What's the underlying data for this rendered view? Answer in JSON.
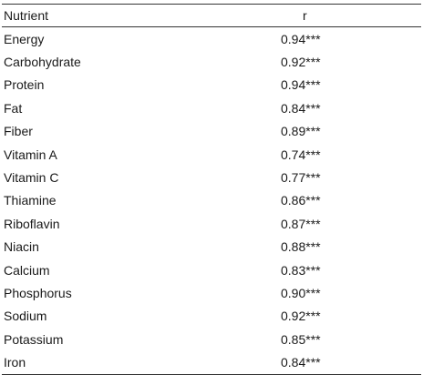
{
  "table": {
    "headers": {
      "nutrient": "Nutrient",
      "r": "r"
    },
    "rows": [
      {
        "nutrient": "Energy",
        "r": "0.94***"
      },
      {
        "nutrient": "Carbohydrate",
        "r": "0.92***"
      },
      {
        "nutrient": "Protein",
        "r": "0.94***"
      },
      {
        "nutrient": "Fat",
        "r": "0.84***"
      },
      {
        "nutrient": "Fiber",
        "r": "0.89***"
      },
      {
        "nutrient": "Vitamin A",
        "r": "0.74***"
      },
      {
        "nutrient": "Vitamin C",
        "r": "0.77***"
      },
      {
        "nutrient": "Thiamine",
        "r": "0.86***"
      },
      {
        "nutrient": "Riboflavin",
        "r": "0.87***"
      },
      {
        "nutrient": "Niacin",
        "r": "0.88***"
      },
      {
        "nutrient": "Calcium",
        "r": "0.83***"
      },
      {
        "nutrient": "Phosphorus",
        "r": "0.90***"
      },
      {
        "nutrient": "Sodium",
        "r": "0.92***"
      },
      {
        "nutrient": "Potassium",
        "r": "0.85***"
      },
      {
        "nutrient": "Iron",
        "r": "0.84***"
      }
    ]
  }
}
